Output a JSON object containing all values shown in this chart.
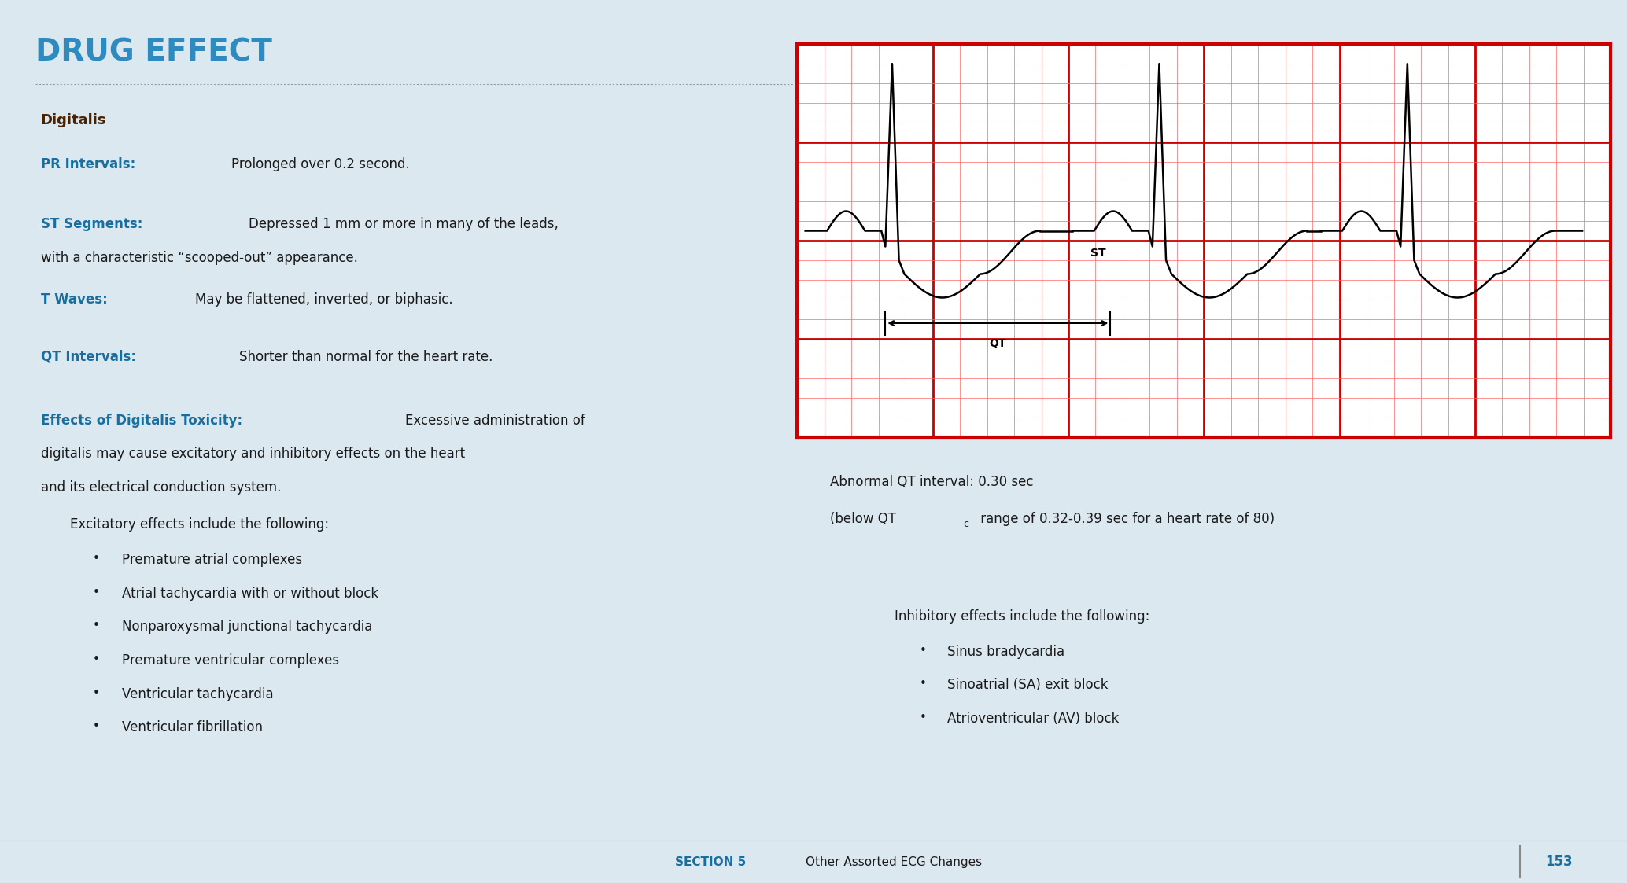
{
  "bg_color": "#dce8f0",
  "title": "DRUG EFFECT",
  "title_color": "#2e8bc0",
  "title_fontsize": 28,
  "dotted_line_color": "#999999",
  "section_header_color": "#1a6e9e",
  "body_text_color": "#1a1a1a",
  "bold_label_color": "#1a6e9e",
  "digitalis_label": "Digitalis",
  "digitalis_label_color": "#4a2200",
  "pr_label": "PR Intervals:",
  "pr_text": "Prolonged over 0.2 second.",
  "st_label": "ST Segments:",
  "st_text": "Depressed 1 mm or more in many of the leads,",
  "st_text2": "with a characteristic “scooped-out” appearance.",
  "tw_label": "T Waves:",
  "tw_text": "May be flattened, inverted, or biphasic.",
  "qt_label": "QT Intervals:",
  "qt_text": "Shorter than normal for the heart rate.",
  "effects_label": "Effects of Digitalis Toxicity:",
  "effects_text1": "Excessive administration of",
  "effects_text2": "digitalis may cause excitatory and inhibitory effects on the heart",
  "effects_text3": "and its electrical conduction system.",
  "excitatory_header": "Excitatory effects include the following:",
  "excitatory_bullets": [
    "Premature atrial complexes",
    "Atrial tachycardia with or without block",
    "Nonparoxysmal junctional tachycardia",
    "Premature ventricular complexes",
    "Ventricular tachycardia",
    "Ventricular fibrillation"
  ],
  "inhibitory_header": "Inhibitory effects include the following:",
  "inhibitory_bullets": [
    "Sinus bradycardia",
    "Sinoatrial (SA) exit block",
    "Atrioventricular (AV) block"
  ],
  "ecg_caption_line1": "Abnormal QT interval: 0.30 sec",
  "ecg_caption_line2a": "(below QT",
  "ecg_caption_subscript": "c",
  "ecg_caption_line2b": " range of 0.32-0.39 sec for a heart rate of 80)",
  "footer_section": "SECTION 5",
  "footer_text": "Other Assorted ECG Changes",
  "footer_page": "153",
  "footer_color": "#1a6e9e",
  "ecg_grid_major_color": "#cc0000",
  "ecg_grid_minor_color": "#ff6666",
  "ecg_line_color": "#000000",
  "ecg_bg_color": "#ffffff"
}
